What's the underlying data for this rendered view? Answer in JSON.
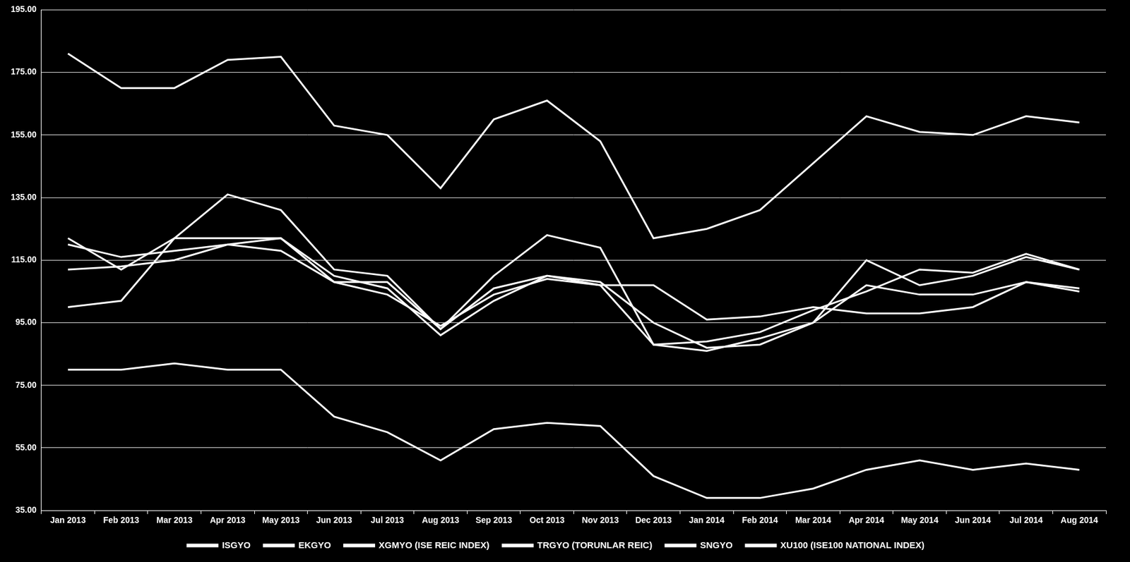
{
  "chart_data": {
    "type": "line",
    "categories": [
      "Jan 2013",
      "Feb 2013",
      "Mar 2013",
      "Apr 2013",
      "May 2013",
      "Jun 2013",
      "Jul 2013",
      "Aug 2013",
      "Sep 2013",
      "Oct 2013",
      "Nov 2013",
      "Dec 2013",
      "Jan 2014",
      "Feb 2014",
      "Mar 2014",
      "Apr 2014",
      "May 2014",
      "Jun 2014",
      "Jul 2014",
      "Aug 2014"
    ],
    "series": [
      {
        "name": "ISGYO",
        "color": "#ffffff",
        "values": [
          100,
          102,
          122,
          136,
          131,
          112,
          110,
          93,
          110,
          123,
          119,
          88,
          86,
          90,
          95,
          115,
          107,
          110,
          116,
          112
        ]
      },
      {
        "name": "EKGYO",
        "color": "#ffffff",
        "values": [
          122,
          112,
          122,
          122,
          122,
          108,
          108,
          93,
          106,
          110,
          107,
          107,
          96,
          97,
          100,
          98,
          98,
          100,
          108,
          105
        ]
      },
      {
        "name": "XGMYO (ISE REIC INDEX)",
        "color": "#ffffff",
        "values": [
          120,
          116,
          118,
          120,
          118,
          108,
          104,
          94,
          104,
          109,
          107,
          88,
          89,
          92,
          99,
          105,
          112,
          111,
          117,
          112
        ]
      },
      {
        "name": "TRGYO (TORUNLAR REIC)",
        "color": "#ffffff",
        "values": [
          181,
          170,
          170,
          179,
          180,
          158,
          155,
          138,
          160,
          166,
          153,
          122,
          125,
          131,
          146,
          161,
          156,
          155,
          161,
          159
        ]
      },
      {
        "name": "SNGYO",
        "color": "#ffffff",
        "values": [
          80,
          80,
          82,
          80,
          80,
          65,
          60,
          51,
          61,
          63,
          62,
          46,
          39,
          39,
          42,
          48,
          51,
          48,
          50,
          48
        ]
      },
      {
        "name": "XU100 (ISE100 NATIONAL INDEX)",
        "color": "#ffffff",
        "values": [
          112,
          113,
          115,
          120,
          122,
          110,
          106,
          91,
          102,
          110,
          108,
          95,
          87,
          88,
          95,
          107,
          104,
          104,
          108,
          106
        ]
      }
    ],
    "ylim": [
      35,
      195
    ],
    "yticks": [
      {
        "value": 35,
        "label": "35.00"
      },
      {
        "value": 55,
        "label": "55.00"
      },
      {
        "value": 75,
        "label": "75.00"
      },
      {
        "value": 95,
        "label": "95.00"
      },
      {
        "value": 115,
        "label": "115.00"
      },
      {
        "value": 135,
        "label": "135.00"
      },
      {
        "value": 155,
        "label": "155.00"
      },
      {
        "value": 175,
        "label": "175.00"
      },
      {
        "value": 195,
        "label": "195.00"
      }
    ],
    "grid": true,
    "legend": "bottom",
    "line_style": "solid"
  }
}
